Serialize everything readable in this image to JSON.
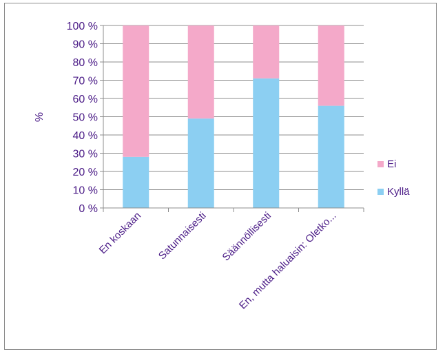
{
  "chart_data": {
    "type": "bar",
    "stacked": true,
    "title": "",
    "xlabel": "",
    "ylabel": "%",
    "ylim": [
      0,
      100
    ],
    "y_ticks": [
      "0 %",
      "10 %",
      "20 %",
      "30 %",
      "40 %",
      "50 %",
      "60 %",
      "70 %",
      "80 %",
      "90 %",
      "100 %"
    ],
    "categories": [
      "En koskaan",
      "Satunnaisesti",
      "Säännöllisesti",
      "En, mutta haluaisin: Oletko..."
    ],
    "series": [
      {
        "name": "Kyllä",
        "color": "#8ccff2",
        "values": [
          28,
          49,
          71,
          56
        ]
      },
      {
        "name": "Ei",
        "color": "#f4a9c9",
        "values": [
          72,
          51,
          29,
          44
        ]
      }
    ],
    "grid": true,
    "legend": "right",
    "legend_order": [
      "Ei",
      "Kyllä"
    ]
  }
}
